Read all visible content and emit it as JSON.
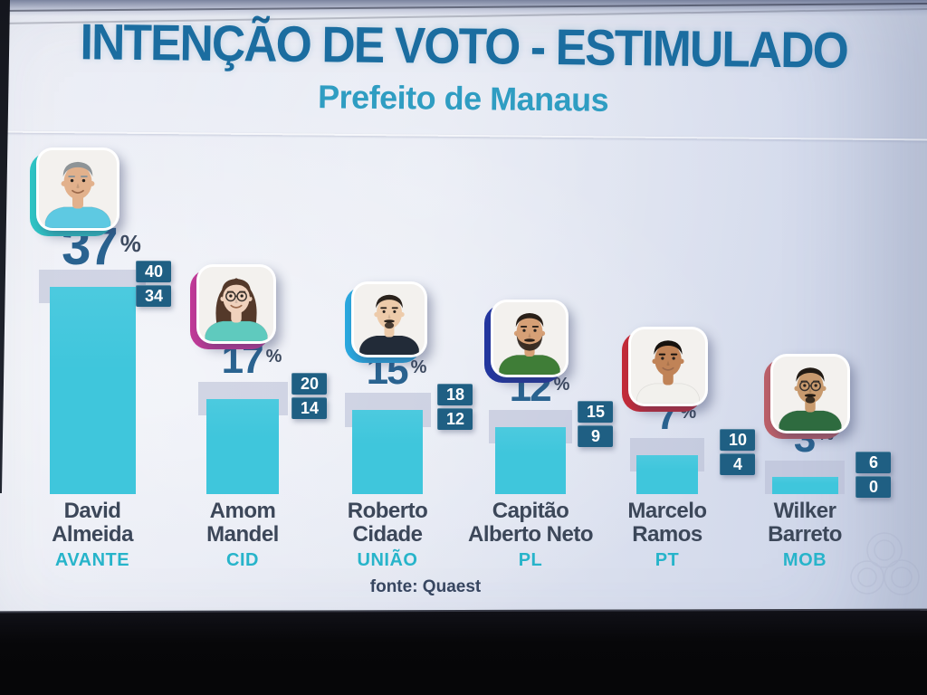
{
  "header": {
    "title": "INTENÇÃO DE VOTO - ESTIMULADO",
    "subtitle": "Prefeito de Manaus"
  },
  "source_label": "fonte: Quaest",
  "percent_sign": "%",
  "colors": {
    "title": "#1b6da0",
    "subtitle": "#2f9dc2",
    "value": "#2a6390",
    "percent": "#3e4b60",
    "badge": "#1f5f83",
    "badgetext": "#ffffff",
    "bar": "#3fc6dc",
    "band": "#b7bcd3",
    "name": "#3c4759",
    "party": "#27b4ca",
    "sourcetext": "#374660"
  },
  "chart_data": {
    "type": "bar",
    "title": "INTENÇÃO DE VOTO - ESTIMULADO",
    "subtitle": "Prefeito de Manaus",
    "source": "fonte: Quaest",
    "unit": "%",
    "ylim": [
      0,
      40
    ],
    "legend_position": "none",
    "margin_note": "stacked badges beside each bar show margin-of-error upper and lower bounds; gray band behind bar spans that interval",
    "categories": [
      "David Almeida",
      "Amom Mandel",
      "Roberto Cidade",
      "Capitão Alberto Neto",
      "Marcelo Ramos",
      "Wilker Barreto"
    ],
    "values": [
      37,
      17,
      15,
      12,
      7,
      3
    ],
    "candidates": [
      {
        "name": "David Almeida",
        "name_lines": [
          "David",
          "Almeida"
        ],
        "party": "AVANTE",
        "value": 37,
        "upper": 40,
        "lower": 34,
        "accent": "#2ec6c6",
        "avatar": {
          "skin": "#e2b18c",
          "hair": "#8e9497",
          "hair_style": "short",
          "shirt": "#5ec9e2",
          "glasses": false,
          "beard": "none"
        }
      },
      {
        "name": "Amom Mandel",
        "name_lines": [
          "Amom",
          "Mandel"
        ],
        "party": "CID",
        "value": 17,
        "upper": 20,
        "lower": 14,
        "accent": "#c23a98",
        "avatar": {
          "skin": "#f0d2bd",
          "hair": "#54392a",
          "hair_style": "long",
          "shirt": "#5fcabe",
          "glasses": true,
          "beard": "none"
        }
      },
      {
        "name": "Roberto Cidade",
        "name_lines": [
          "Roberto",
          "Cidade"
        ],
        "party": "UNIÃO",
        "value": 15,
        "upper": 18,
        "lower": 12,
        "accent": "#2aa9e0",
        "avatar": {
          "skin": "#edcbaa",
          "hair": "#2a221c",
          "hair_style": "short",
          "shirt": "#222b38",
          "glasses": false,
          "beard": "goatee"
        }
      },
      {
        "name": "Capitão Alberto Neto",
        "name_lines": [
          "Capitão",
          "Alberto Neto"
        ],
        "party": "PL",
        "value": 12,
        "upper": 15,
        "lower": 9,
        "accent": "#2336a0",
        "avatar": {
          "skin": "#d6a076",
          "hair": "#291f18",
          "hair_style": "short",
          "shirt": "#3f7d37",
          "glasses": false,
          "beard": "full"
        }
      },
      {
        "name": "Marcelo Ramos",
        "name_lines": [
          "Marcelo",
          "Ramos"
        ],
        "party": "PT",
        "value": 7,
        "upper": 10,
        "lower": 4,
        "accent": "#c62b38",
        "avatar": {
          "skin": "#c08357",
          "hair": "#17120e",
          "hair_style": "short",
          "shirt": "#f2f1ed",
          "glasses": false,
          "beard": "none"
        }
      },
      {
        "name": "Wilker Barreto",
        "name_lines": [
          "Wilker",
          "Barreto"
        ],
        "party": "MOB",
        "value": 3,
        "upper": 6,
        "lower": 0,
        "accent": "#bd6069",
        "avatar": {
          "skin": "#c89a6e",
          "hair": "#221b14",
          "hair_style": "short",
          "shirt": "#2e6b3f",
          "glasses": true,
          "beard": "goatee"
        }
      }
    ]
  }
}
